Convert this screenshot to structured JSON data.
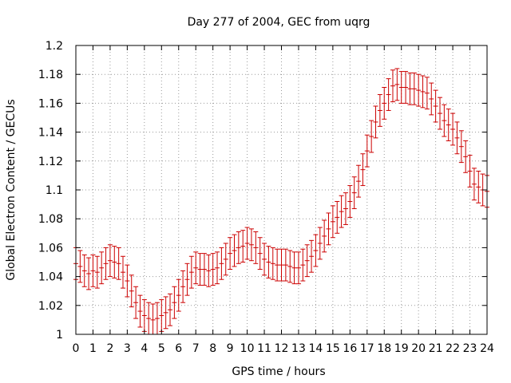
{
  "chart_data": {
    "type": "scatter",
    "title": "Day 277 of 2004, GEC from uqrg",
    "xlabel": "GPS time / hours",
    "ylabel": "Global Electron Content / GECUs",
    "xlim": [
      0,
      24
    ],
    "ylim": [
      1.0,
      1.2
    ],
    "xticks": [
      "0",
      "1",
      "2",
      "3",
      "4",
      "5",
      "6",
      "7",
      "8",
      "9",
      "10",
      "11",
      "12",
      "13",
      "14",
      "15",
      "16",
      "17",
      "18",
      "19",
      "20",
      "21",
      "22",
      "23",
      "24"
    ],
    "yticks": [
      "1",
      "1.02",
      "1.04",
      "1.06",
      "1.08",
      "1.1",
      "1.12",
      "1.14",
      "1.16",
      "1.18",
      "1.2"
    ],
    "grid": true,
    "error_bar": 0.011,
    "color": "#cc0000",
    "series": [
      {
        "name": "GEC",
        "x": [
          0.0,
          0.25,
          0.5,
          0.75,
          1.0,
          1.25,
          1.5,
          1.75,
          2.0,
          2.25,
          2.5,
          2.75,
          3.0,
          3.25,
          3.5,
          3.75,
          4.0,
          4.25,
          4.5,
          4.75,
          5.0,
          5.25,
          5.5,
          5.75,
          6.0,
          6.25,
          6.5,
          6.75,
          7.0,
          7.25,
          7.5,
          7.75,
          8.0,
          8.25,
          8.5,
          8.75,
          9.0,
          9.25,
          9.5,
          9.75,
          10.0,
          10.25,
          10.5,
          10.75,
          11.0,
          11.25,
          11.5,
          11.75,
          12.0,
          12.25,
          12.5,
          12.75,
          13.0,
          13.25,
          13.5,
          13.75,
          14.0,
          14.25,
          14.5,
          14.75,
          15.0,
          15.25,
          15.5,
          15.75,
          16.0,
          16.25,
          16.5,
          16.75,
          17.0,
          17.25,
          17.5,
          17.75,
          18.0,
          18.25,
          18.5,
          18.75,
          19.0,
          19.25,
          19.5,
          19.75,
          20.0,
          20.25,
          20.5,
          20.75,
          21.0,
          21.25,
          21.5,
          21.75,
          22.0,
          22.25,
          22.5,
          22.75,
          23.0,
          23.25,
          23.5,
          23.75,
          24.0
        ],
        "y": [
          1.049,
          1.047,
          1.044,
          1.042,
          1.044,
          1.043,
          1.046,
          1.049,
          1.051,
          1.05,
          1.049,
          1.043,
          1.037,
          1.03,
          1.022,
          1.016,
          1.013,
          1.011,
          1.01,
          1.011,
          1.013,
          1.015,
          1.017,
          1.022,
          1.027,
          1.033,
          1.038,
          1.043,
          1.046,
          1.045,
          1.045,
          1.044,
          1.045,
          1.046,
          1.049,
          1.052,
          1.056,
          1.058,
          1.06,
          1.061,
          1.063,
          1.062,
          1.06,
          1.056,
          1.052,
          1.05,
          1.049,
          1.048,
          1.048,
          1.048,
          1.047,
          1.046,
          1.046,
          1.048,
          1.051,
          1.054,
          1.058,
          1.063,
          1.068,
          1.073,
          1.078,
          1.081,
          1.085,
          1.087,
          1.092,
          1.098,
          1.106,
          1.114,
          1.127,
          1.137,
          1.147,
          1.155,
          1.16,
          1.166,
          1.172,
          1.173,
          1.171,
          1.171,
          1.17,
          1.17,
          1.169,
          1.168,
          1.167,
          1.163,
          1.158,
          1.153,
          1.148,
          1.145,
          1.142,
          1.136,
          1.13,
          1.123,
          1.113,
          1.104,
          1.102,
          1.1,
          1.099
        ]
      }
    ]
  }
}
